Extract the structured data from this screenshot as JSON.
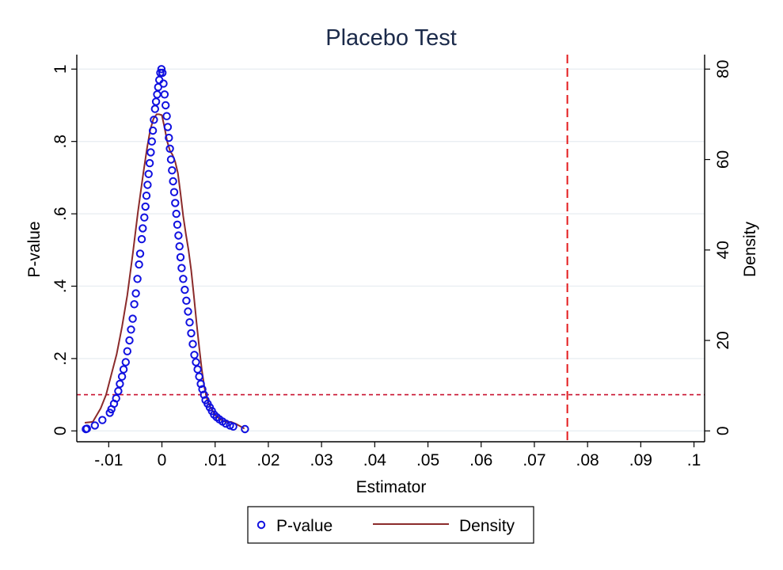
{
  "chart_data": {
    "type": "scatter",
    "title": "Placebo Test",
    "xlabel": "Estimator",
    "ylabel": "P-value",
    "y2label": "Density",
    "xlim": [
      -0.016,
      0.102
    ],
    "ylim": [
      -0.03,
      1.04
    ],
    "y2lim": [
      -2.4,
      83.2
    ],
    "x_ticks": [
      -0.01,
      0,
      0.01,
      0.02,
      0.03,
      0.04,
      0.05,
      0.06,
      0.07,
      0.08,
      0.09,
      0.1
    ],
    "x_tick_labels": [
      "-.01",
      "0",
      ".01",
      ".02",
      ".03",
      ".04",
      ".05",
      ".06",
      ".07",
      ".08",
      ".09",
      ".1"
    ],
    "y_ticks": [
      0,
      0.2,
      0.4,
      0.6,
      0.8,
      1
    ],
    "y_tick_labels": [
      "0",
      ".2",
      ".4",
      ".6",
      ".8",
      "1"
    ],
    "y2_ticks": [
      0,
      20,
      40,
      60,
      80
    ],
    "y2_tick_labels": [
      "0",
      "20",
      "40",
      "60",
      "80"
    ],
    "grid": true,
    "legend_position": "bottom",
    "series": [
      {
        "name": "P-value",
        "type": "scatter",
        "color": "#1010e0",
        "x": [
          -0.0143,
          -0.0141,
          -0.0126,
          -0.0112,
          -0.0098,
          -0.0095,
          -0.009,
          -0.0086,
          -0.0082,
          -0.0079,
          -0.0075,
          -0.0072,
          -0.0068,
          -0.0065,
          -0.0061,
          -0.0058,
          -0.0055,
          -0.0052,
          -0.0049,
          -0.0046,
          -0.0043,
          -0.0041,
          -0.0038,
          -0.0036,
          -0.0033,
          -0.0031,
          -0.0029,
          -0.0027,
          -0.0025,
          -0.0023,
          -0.0021,
          -0.0019,
          -0.0017,
          -0.0015,
          -0.0013,
          -0.0011,
          -0.0009,
          -0.0007,
          -0.0005,
          -0.0003,
          -0.0001,
          0.0001,
          0.0003,
          0.0005,
          0.0007,
          0.0009,
          0.0011,
          0.0013,
          0.0015,
          0.0017,
          0.0019,
          0.0021,
          0.0023,
          0.0025,
          0.0027,
          0.0029,
          0.0031,
          0.0033,
          0.0035,
          0.0037,
          0.004,
          0.0043,
          0.0046,
          0.0049,
          0.0052,
          0.0055,
          0.0058,
          0.0061,
          0.0064,
          0.0067,
          0.007,
          0.0073,
          0.0076,
          0.0079,
          0.0082,
          0.0086,
          0.009,
          0.0094,
          0.0098,
          0.0103,
          0.0108,
          0.0114,
          0.012,
          0.0128,
          0.0134,
          0.0156
        ],
        "values": [
          0.005,
          0.006,
          0.015,
          0.03,
          0.05,
          0.06,
          0.075,
          0.09,
          0.11,
          0.13,
          0.15,
          0.17,
          0.19,
          0.22,
          0.25,
          0.28,
          0.31,
          0.35,
          0.38,
          0.42,
          0.46,
          0.49,
          0.53,
          0.56,
          0.59,
          0.62,
          0.65,
          0.68,
          0.71,
          0.74,
          0.77,
          0.8,
          0.83,
          0.86,
          0.89,
          0.91,
          0.93,
          0.95,
          0.97,
          0.99,
          1.0,
          0.99,
          0.96,
          0.93,
          0.9,
          0.87,
          0.84,
          0.81,
          0.78,
          0.75,
          0.72,
          0.69,
          0.66,
          0.63,
          0.6,
          0.57,
          0.54,
          0.51,
          0.48,
          0.45,
          0.42,
          0.39,
          0.36,
          0.33,
          0.3,
          0.27,
          0.24,
          0.21,
          0.19,
          0.17,
          0.15,
          0.13,
          0.115,
          0.1,
          0.085,
          0.075,
          0.065,
          0.055,
          0.045,
          0.038,
          0.032,
          0.026,
          0.02,
          0.015,
          0.012,
          0.005
        ]
      },
      {
        "name": "Density",
        "type": "line",
        "axis": "right",
        "color": "#8b2b2b",
        "x": [
          -0.0145,
          -0.013,
          -0.0115,
          -0.0105,
          -0.0095,
          -0.0085,
          -0.0075,
          -0.0065,
          -0.0055,
          -0.0045,
          -0.0035,
          -0.0028,
          -0.0022,
          -0.0016,
          -0.001,
          -0.0005,
          0.0,
          0.0005,
          0.001,
          0.0015,
          0.002,
          0.0025,
          0.003,
          0.0035,
          0.004,
          0.0045,
          0.005,
          0.0055,
          0.006,
          0.0065,
          0.007,
          0.0075,
          0.008,
          0.0085,
          0.009,
          0.0095,
          0.01,
          0.011,
          0.012,
          0.013,
          0.014,
          0.0155
        ],
        "values": [
          1.8,
          2.0,
          5.0,
          8.0,
          12.5,
          17.0,
          23.0,
          30.0,
          39.0,
          48.5,
          57.0,
          62.5,
          66.5,
          69.0,
          70.0,
          70.0,
          69.8,
          67.0,
          64.0,
          62.0,
          61.0,
          59.5,
          57.0,
          52.5,
          47.5,
          43.5,
          40.0,
          35.5,
          30.0,
          24.0,
          18.5,
          13.5,
          9.5,
          7.0,
          5.5,
          4.5,
          3.5,
          2.5,
          2.0,
          2.0,
          1.5,
          0.5
        ]
      }
    ],
    "reference_lines": [
      {
        "orientation": "horizontal",
        "axis": "left",
        "value": 0.1,
        "color": "#c8102e",
        "style": "dashed"
      },
      {
        "orientation": "vertical",
        "value": 0.0762,
        "color": "#e41a1c",
        "style": "dashed"
      }
    ],
    "legend": [
      {
        "label": "P-value",
        "marker": "circle",
        "color": "#1010e0"
      },
      {
        "label": "Density",
        "marker": "line",
        "color": "#8b2b2b"
      }
    ]
  }
}
